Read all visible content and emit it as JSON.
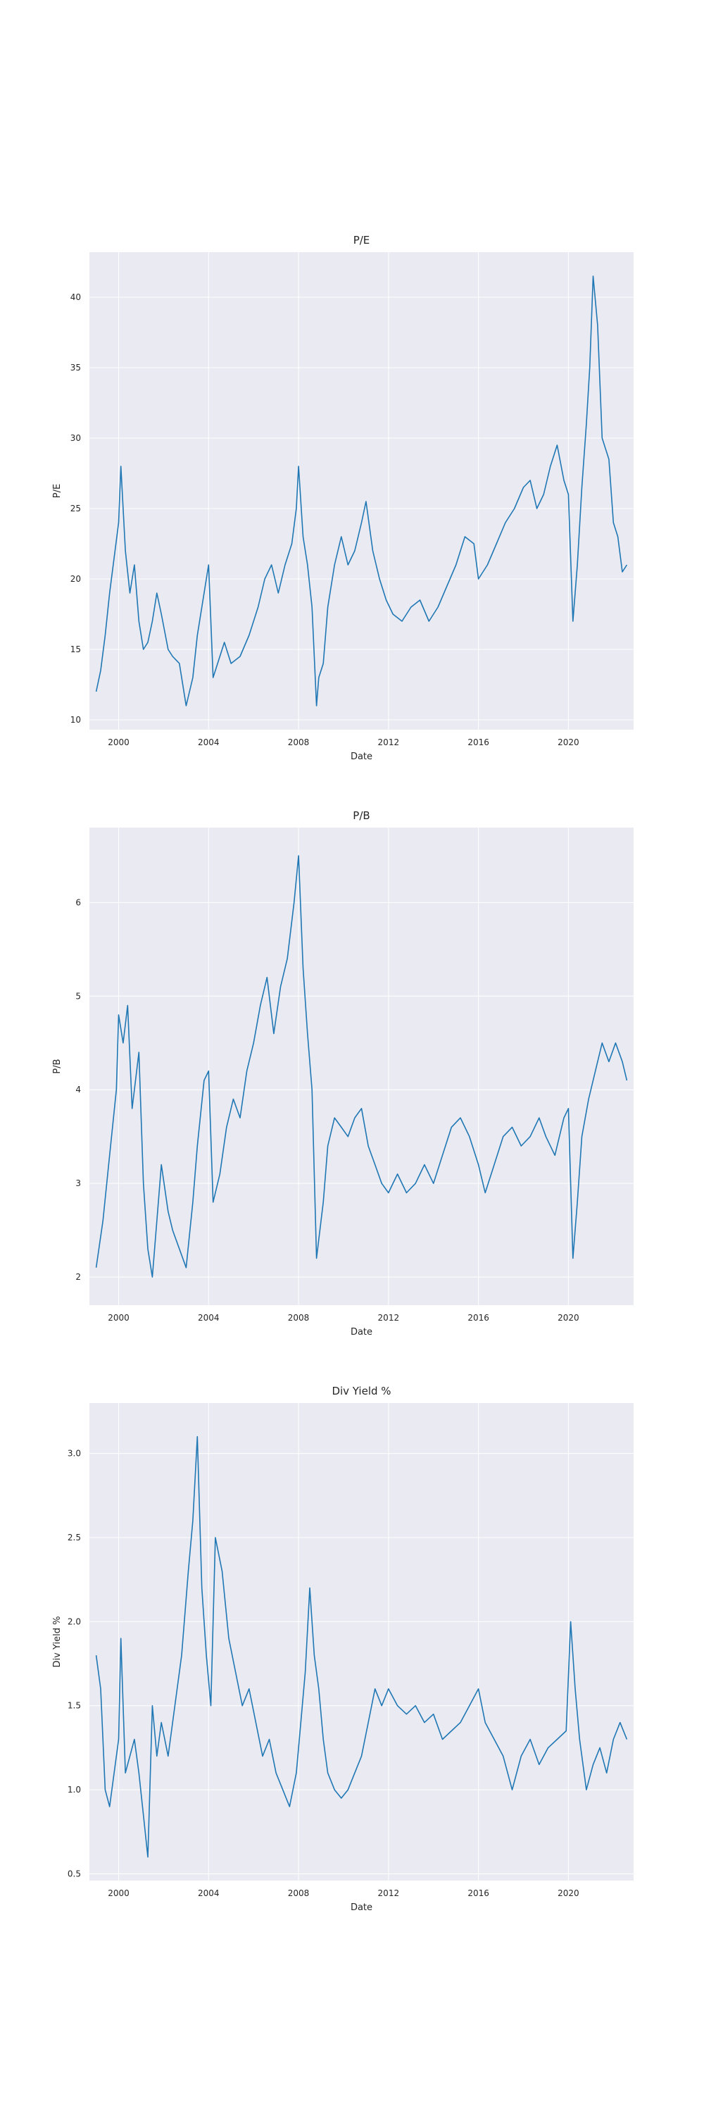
{
  "colors": {
    "plot_background": "#eaeaf2",
    "grid": "#ffffff",
    "series": "#1f77b4",
    "text": "#262626"
  },
  "chart_data": [
    {
      "type": "line",
      "title": "P/E",
      "xlabel": "Date",
      "ylabel": "P/E",
      "grid": true,
      "xlim": [
        1998.7,
        2022.9
      ],
      "ylim": [
        9.3,
        43.2
      ],
      "x_ticks": [
        2000,
        2004,
        2008,
        2012,
        2016,
        2020
      ],
      "x_tick_labels": [
        "2000",
        "2004",
        "2008",
        "2012",
        "2016",
        "2020"
      ],
      "y_ticks": [
        10,
        15,
        20,
        25,
        30,
        35,
        40
      ],
      "y_tick_labels": [
        "10",
        "15",
        "20",
        "25",
        "30",
        "35",
        "40"
      ],
      "series": [
        {
          "x": [
            1999.0,
            1999.2,
            1999.4,
            1999.6,
            1999.8,
            2000.0,
            2000.1,
            2000.3,
            2000.5,
            2000.7,
            2000.9,
            2001.1,
            2001.3,
            2001.5,
            2001.7,
            2001.9,
            2002.2,
            2002.4,
            2002.7,
            2003.0,
            2003.3,
            2003.5,
            2003.8,
            2004.0,
            2004.2,
            2004.4,
            2004.7,
            2005.0,
            2005.4,
            2005.8,
            2006.2,
            2006.5,
            2006.8,
            2007.1,
            2007.4,
            2007.7,
            2007.9,
            2008.0,
            2008.2,
            2008.4,
            2008.6,
            2008.8,
            2008.9,
            2009.1,
            2009.3,
            2009.6,
            2009.9,
            2010.2,
            2010.5,
            2010.8,
            2011.0,
            2011.3,
            2011.6,
            2011.9,
            2012.2,
            2012.6,
            2013.0,
            2013.4,
            2013.8,
            2014.2,
            2014.6,
            2015.0,
            2015.4,
            2015.8,
            2016.0,
            2016.4,
            2016.8,
            2017.2,
            2017.6,
            2018.0,
            2018.3,
            2018.6,
            2018.9,
            2019.2,
            2019.5,
            2019.8,
            2020.0,
            2020.2,
            2020.4,
            2020.6,
            2020.8,
            2020.95,
            2021.1,
            2021.3,
            2021.5,
            2021.8,
            2022.0,
            2022.2,
            2022.4,
            2022.6
          ],
          "values": [
            12.0,
            13.5,
            16.0,
            19.0,
            21.5,
            24.0,
            28.0,
            22.0,
            19.0,
            21.0,
            17.0,
            15.0,
            15.5,
            17.0,
            19.0,
            17.5,
            15.0,
            14.5,
            14.0,
            11.0,
            13.0,
            16.0,
            19.0,
            21.0,
            13.0,
            14.0,
            15.5,
            14.0,
            14.5,
            16.0,
            18.0,
            20.0,
            21.0,
            19.0,
            21.0,
            22.5,
            25.0,
            28.0,
            23.0,
            21.0,
            18.0,
            11.0,
            13.0,
            14.0,
            18.0,
            21.0,
            23.0,
            21.0,
            22.0,
            24.0,
            25.5,
            22.0,
            20.0,
            18.5,
            17.5,
            17.0,
            18.0,
            18.5,
            17.0,
            18.0,
            19.5,
            21.0,
            23.0,
            22.5,
            20.0,
            21.0,
            22.5,
            24.0,
            25.0,
            26.5,
            27.0,
            25.0,
            26.0,
            28.0,
            29.5,
            27.0,
            26.0,
            17.0,
            21.0,
            26.5,
            31.0,
            35.0,
            41.5,
            38.0,
            30.0,
            28.5,
            24.0,
            23.0,
            20.5,
            21.0
          ]
        }
      ]
    },
    {
      "type": "line",
      "title": "P/B",
      "xlabel": "Date",
      "ylabel": "P/B",
      "grid": true,
      "xlim": [
        1998.7,
        2022.9
      ],
      "ylim": [
        1.7,
        6.8
      ],
      "x_ticks": [
        2000,
        2004,
        2008,
        2012,
        2016,
        2020
      ],
      "x_tick_labels": [
        "2000",
        "2004",
        "2008",
        "2012",
        "2016",
        "2020"
      ],
      "y_ticks": [
        2,
        3,
        4,
        5,
        6
      ],
      "y_tick_labels": [
        "2",
        "3",
        "4",
        "5",
        "6"
      ],
      "series": [
        {
          "x": [
            1999.0,
            1999.3,
            1999.6,
            1999.9,
            2000.0,
            2000.2,
            2000.4,
            2000.6,
            2000.9,
            2001.1,
            2001.3,
            2001.5,
            2001.7,
            2001.9,
            2002.2,
            2002.4,
            2002.7,
            2003.0,
            2003.3,
            2003.5,
            2003.8,
            2004.0,
            2004.2,
            2004.5,
            2004.8,
            2005.1,
            2005.4,
            2005.7,
            2006.0,
            2006.3,
            2006.6,
            2006.9,
            2007.2,
            2007.5,
            2007.8,
            2008.0,
            2008.2,
            2008.4,
            2008.6,
            2008.8,
            2008.9,
            2009.1,
            2009.3,
            2009.6,
            2009.9,
            2010.2,
            2010.5,
            2010.8,
            2011.1,
            2011.4,
            2011.7,
            2012.0,
            2012.4,
            2012.8,
            2013.2,
            2013.6,
            2014.0,
            2014.4,
            2014.8,
            2015.2,
            2015.6,
            2016.0,
            2016.3,
            2016.7,
            2017.1,
            2017.5,
            2017.9,
            2018.3,
            2018.7,
            2019.0,
            2019.4,
            2019.8,
            2020.0,
            2020.2,
            2020.4,
            2020.6,
            2020.9,
            2021.2,
            2021.5,
            2021.8,
            2022.1,
            2022.4,
            2022.6
          ],
          "values": [
            2.1,
            2.6,
            3.3,
            4.0,
            4.8,
            4.5,
            4.9,
            3.8,
            4.4,
            3.0,
            2.3,
            2.0,
            2.6,
            3.2,
            2.7,
            2.5,
            2.3,
            2.1,
            2.8,
            3.4,
            4.1,
            4.2,
            2.8,
            3.1,
            3.6,
            3.9,
            3.7,
            4.2,
            4.5,
            4.9,
            5.2,
            4.6,
            5.1,
            5.4,
            6.0,
            6.5,
            5.3,
            4.6,
            4.0,
            2.2,
            2.4,
            2.8,
            3.4,
            3.7,
            3.6,
            3.5,
            3.7,
            3.8,
            3.4,
            3.2,
            3.0,
            2.9,
            3.1,
            2.9,
            3.0,
            3.2,
            3.0,
            3.3,
            3.6,
            3.7,
            3.5,
            3.2,
            2.9,
            3.2,
            3.5,
            3.6,
            3.4,
            3.5,
            3.7,
            3.5,
            3.3,
            3.7,
            3.8,
            2.2,
            2.8,
            3.5,
            3.9,
            4.2,
            4.5,
            4.3,
            4.5,
            4.3,
            4.1
          ]
        }
      ]
    },
    {
      "type": "line",
      "title": "Div Yield %",
      "xlabel": "Date",
      "ylabel": "Div Yield %",
      "grid": true,
      "xlim": [
        1998.7,
        2022.9
      ],
      "ylim": [
        0.46,
        3.3
      ],
      "x_ticks": [
        2000,
        2004,
        2008,
        2012,
        2016,
        2020
      ],
      "x_tick_labels": [
        "2000",
        "2004",
        "2008",
        "2012",
        "2016",
        "2020"
      ],
      "y_ticks": [
        0.5,
        1.0,
        1.5,
        2.0,
        2.5,
        3.0
      ],
      "y_tick_labels": [
        "0.5",
        "1.0",
        "1.5",
        "2.0",
        "2.5",
        "3.0"
      ],
      "series": [
        {
          "x": [
            1999.0,
            1999.2,
            1999.4,
            1999.6,
            1999.8,
            2000.0,
            2000.1,
            2000.3,
            2000.5,
            2000.7,
            2000.9,
            2001.1,
            2001.3,
            2001.5,
            2001.7,
            2001.9,
            2002.2,
            2002.5,
            2002.8,
            2003.1,
            2003.3,
            2003.5,
            2003.7,
            2003.9,
            2004.1,
            2004.3,
            2004.6,
            2004.9,
            2005.2,
            2005.5,
            2005.8,
            2006.1,
            2006.4,
            2006.7,
            2007.0,
            2007.3,
            2007.6,
            2007.9,
            2008.1,
            2008.3,
            2008.5,
            2008.7,
            2008.9,
            2009.1,
            2009.3,
            2009.6,
            2009.9,
            2010.2,
            2010.5,
            2010.8,
            2011.1,
            2011.4,
            2011.7,
            2012.0,
            2012.4,
            2012.8,
            2013.2,
            2013.6,
            2014.0,
            2014.4,
            2014.8,
            2015.2,
            2015.6,
            2016.0,
            2016.3,
            2016.7,
            2017.1,
            2017.5,
            2017.9,
            2018.3,
            2018.7,
            2019.1,
            2019.5,
            2019.9,
            2020.1,
            2020.3,
            2020.5,
            2020.8,
            2021.1,
            2021.4,
            2021.7,
            2022.0,
            2022.3,
            2022.6
          ],
          "values": [
            1.8,
            1.6,
            1.0,
            0.9,
            1.1,
            1.3,
            1.9,
            1.1,
            1.2,
            1.3,
            1.1,
            0.85,
            0.6,
            1.5,
            1.2,
            1.4,
            1.2,
            1.5,
            1.8,
            2.3,
            2.6,
            3.1,
            2.2,
            1.8,
            1.5,
            2.5,
            2.3,
            1.9,
            1.7,
            1.5,
            1.6,
            1.4,
            1.2,
            1.3,
            1.1,
            1.0,
            0.9,
            1.1,
            1.4,
            1.7,
            2.2,
            1.8,
            1.6,
            1.3,
            1.1,
            1.0,
            0.95,
            1.0,
            1.1,
            1.2,
            1.4,
            1.6,
            1.5,
            1.6,
            1.5,
            1.45,
            1.5,
            1.4,
            1.45,
            1.3,
            1.35,
            1.4,
            1.5,
            1.6,
            1.4,
            1.3,
            1.2,
            1.0,
            1.2,
            1.3,
            1.15,
            1.25,
            1.3,
            1.35,
            2.0,
            1.6,
            1.3,
            1.0,
            1.15,
            1.25,
            1.1,
            1.3,
            1.4,
            1.3
          ]
        }
      ]
    }
  ]
}
